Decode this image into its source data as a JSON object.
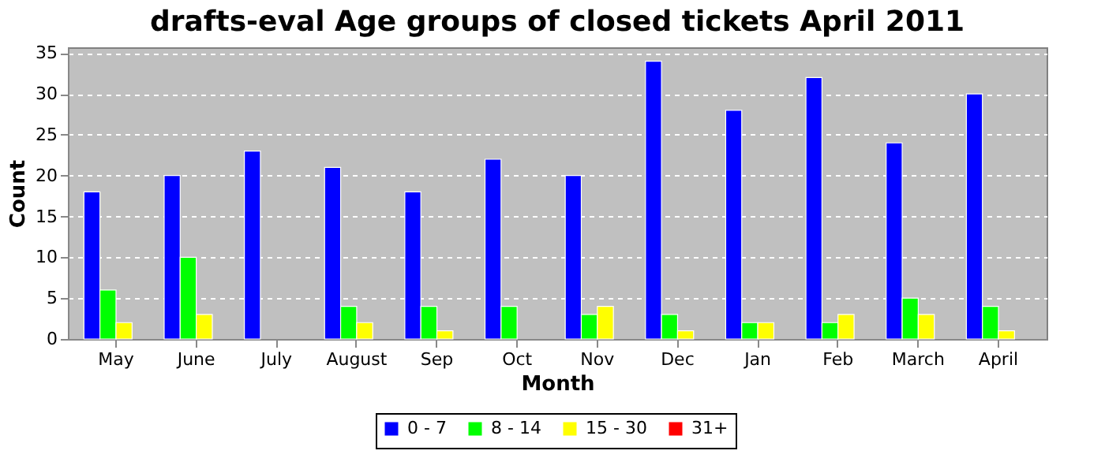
{
  "chart_data": {
    "type": "bar",
    "title": "drafts-eval Age groups of closed tickets April 2011",
    "xlabel": "Month",
    "ylabel": "Count",
    "categories": [
      "May",
      "June",
      "July",
      "August",
      "Sep",
      "Oct",
      "Nov",
      "Dec",
      "Jan",
      "Feb",
      "March",
      "April"
    ],
    "series": [
      {
        "name": "0 - 7",
        "color": "#0000ff",
        "values": [
          18,
          20,
          23,
          21,
          18,
          22,
          20,
          34,
          28,
          32,
          24,
          30
        ]
      },
      {
        "name": "8 - 14",
        "color": "#00ff00",
        "values": [
          6,
          10,
          0,
          4,
          4,
          4,
          3,
          3,
          2,
          2,
          5,
          4
        ]
      },
      {
        "name": "15 - 30",
        "color": "#ffff00",
        "values": [
          2,
          3,
          0,
          2,
          1,
          0,
          4,
          1,
          2,
          3,
          3,
          1
        ]
      },
      {
        "name": "31+",
        "color": "#ff0000",
        "values": [
          0,
          0,
          0,
          0,
          0,
          0,
          0,
          0,
          0,
          0,
          0,
          0
        ]
      }
    ],
    "ylim": [
      0,
      35.7
    ],
    "yticks": [
      0,
      5,
      10,
      15,
      20,
      25,
      30,
      35
    ],
    "grid": "y",
    "legend": "bottom"
  }
}
